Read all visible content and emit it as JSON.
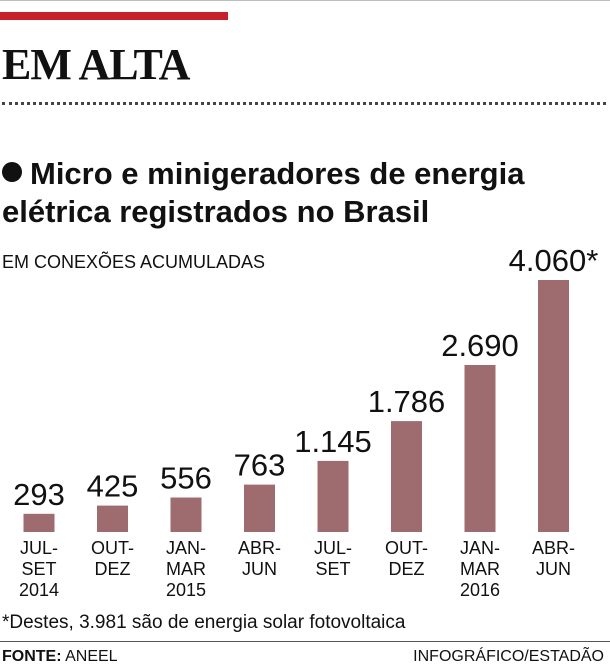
{
  "header": {
    "section_title": "EM ALTA"
  },
  "colors": {
    "accent": "#c8202a",
    "bar": "#9e6b6f"
  },
  "chart_data": {
    "type": "bar",
    "title": "Micro e minigeradores de energia elétrica registrados no Brasil",
    "unit_label": "EM CONEXÕES ACUMULADAS",
    "categories": [
      [
        "JUL-",
        "SET",
        "2014"
      ],
      [
        "OUT-",
        "DEZ"
      ],
      [
        "JAN-",
        "MAR",
        "2015"
      ],
      [
        "ABR-",
        "JUN"
      ],
      [
        "JUL-",
        "SET"
      ],
      [
        "OUT-",
        "DEZ"
      ],
      [
        "JAN-",
        "MAR",
        "2016"
      ],
      [
        "ABR-",
        "JUN"
      ]
    ],
    "values": [
      293,
      425,
      556,
      763,
      1145,
      1786,
      2690,
      4060
    ],
    "data_labels": [
      "293",
      "425",
      "556",
      "763",
      "1.145",
      "1.786",
      "2.690",
      "4.060*"
    ],
    "ylim": [
      0,
      4060
    ]
  },
  "footer": {
    "footnote": "*Destes, 3.981 são de energia solar fotovoltaica",
    "source_label": "FONTE:",
    "source_value": "ANEEL",
    "credit": "INFOGRÁFICO/ESTADÃO"
  }
}
